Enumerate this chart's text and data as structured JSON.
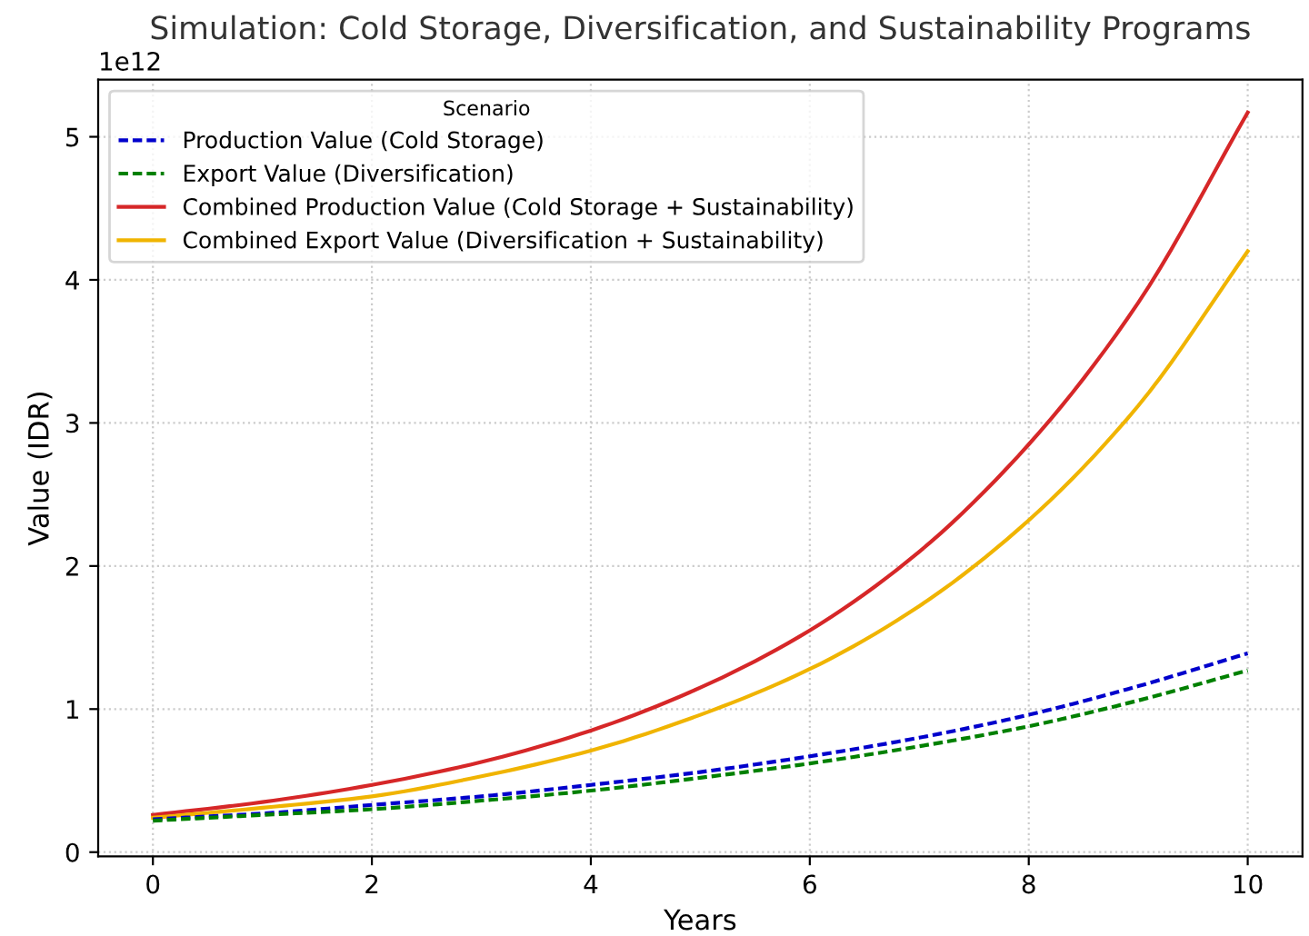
{
  "chart_data": {
    "type": "line",
    "title": "Simulation: Cold Storage, Diversification, and Sustainability Programs",
    "xlabel": "Years",
    "ylabel": "Value (IDR)",
    "legend_title": "Scenario",
    "annotations": [
      "1e12"
    ],
    "x": [
      0,
      1,
      2,
      3,
      4,
      5,
      6,
      7,
      8,
      9,
      10
    ],
    "series": [
      {
        "name": "Production Value (Cold Storage)",
        "color": "#0000cc",
        "line_style": "dashed",
        "values": [
          0.23,
          0.27,
          0.33,
          0.39,
          0.47,
          0.56,
          0.67,
          0.8,
          0.96,
          1.16,
          1.39
        ]
      },
      {
        "name": "Export Value (Diversification)",
        "color": "#008000",
        "line_style": "dashed",
        "values": [
          0.22,
          0.26,
          0.3,
          0.36,
          0.43,
          0.52,
          0.62,
          0.74,
          0.88,
          1.06,
          1.27
        ]
      },
      {
        "name": "Combined Production Value (Cold Storage + Sustainability)",
        "color": "#d62728",
        "line_style": "solid",
        "values": [
          0.26,
          0.35,
          0.47,
          0.63,
          0.85,
          1.15,
          1.55,
          2.1,
          2.85,
          3.84,
          5.17
        ]
      },
      {
        "name": "Combined Export Value (Diversification + Sustainability)",
        "color": "#f0b400",
        "line_style": "solid",
        "values": [
          0.24,
          0.31,
          0.39,
          0.53,
          0.71,
          0.96,
          1.28,
          1.72,
          2.32,
          3.12,
          4.2
        ]
      }
    ],
    "xlim": [
      -0.5,
      10.5
    ],
    "xticks": [
      0,
      2,
      4,
      6,
      8,
      10
    ],
    "ylim": [
      -0.03,
      5.4
    ],
    "yticks": [
      0,
      1,
      2,
      3,
      4,
      5
    ],
    "grid": true,
    "legend": "top left"
  }
}
